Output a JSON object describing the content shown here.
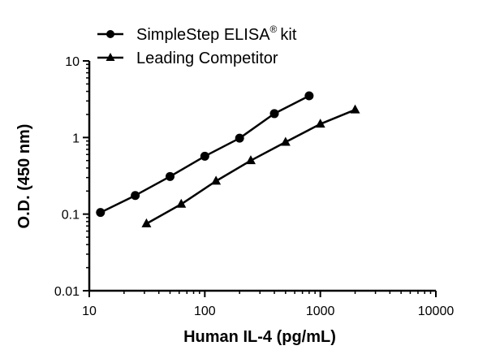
{
  "chart_data": {
    "type": "line",
    "xlabel": "Human IL-4 (pg/mL)",
    "ylabel": "O.D. (450 nm)",
    "xscale": "log",
    "yscale": "log",
    "xlim": [
      10,
      10000
    ],
    "ylim": [
      0.01,
      10
    ],
    "x_ticks": [
      "10",
      "100",
      "1000",
      "10000"
    ],
    "y_ticks": [
      "0.01",
      "0.1",
      "1",
      "10"
    ],
    "legend_position": "top-left",
    "series": [
      {
        "name": "SimpleStep ELISA",
        "name_superscript": "®",
        "name_suffix": "kit",
        "marker": "circle",
        "color": "#000000",
        "x": [
          12.5,
          25,
          50,
          100,
          200,
          400,
          800
        ],
        "y": [
          0.105,
          0.175,
          0.31,
          0.57,
          0.98,
          2.05,
          3.5
        ]
      },
      {
        "name": "Leading Competitor",
        "marker": "triangle",
        "color": "#000000",
        "x": [
          31.25,
          62.5,
          125,
          250,
          500,
          1000,
          2000
        ],
        "y": [
          0.075,
          0.135,
          0.27,
          0.5,
          0.87,
          1.5,
          2.3
        ]
      }
    ]
  }
}
